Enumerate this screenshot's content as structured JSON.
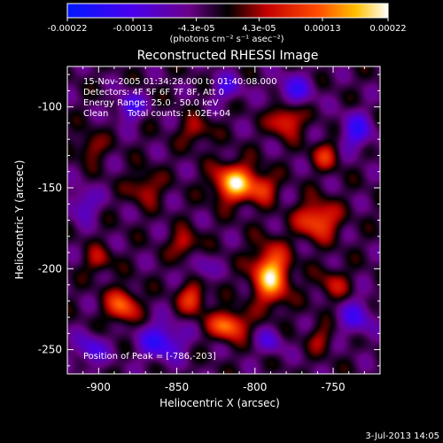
{
  "colorbar": {
    "tick_labels": [
      "-0.00022",
      "-0.00013",
      "-4.3e-05",
      "4.3e-05",
      "0.00013",
      "0.00022"
    ],
    "tick_values": [
      -0.00022,
      -0.00013,
      -4.3e-05,
      4.3e-05,
      0.00013,
      0.00022
    ],
    "range": [
      -0.00022,
      0.00022
    ],
    "units_label": "(photons cm⁻² s⁻¹ asec⁻²)",
    "colors": [
      "#0018ff",
      "#4a00ee",
      "#6a0088",
      "#000000",
      "#c20000",
      "#ff4b00",
      "#ffc000",
      "#ffffff"
    ]
  },
  "plot": {
    "title": "Reconstructed RHESSI Image",
    "xlabel": "Heliocentric X (arcsec)",
    "ylabel": "Heliocentric Y (arcsec)",
    "x_ticks": [
      "-900",
      "-850",
      "-800",
      "-750"
    ],
    "y_ticks": [
      "-100",
      "-150",
      "-200",
      "-250"
    ],
    "x_range": [
      -920,
      -720
    ],
    "y_range": [
      -265,
      -75
    ],
    "x_tick_values": [
      -900,
      -850,
      -800,
      -750
    ],
    "y_tick_values": [
      -100,
      -150,
      -200,
      -250
    ]
  },
  "annotations": {
    "time_range": "15-Nov-2005 01:34:28.000 to 01:40:08.000",
    "detectors": "Detectors: 4F 5F 6F 7F 8F, Att 0",
    "energy_range": "Energy Range: 25.0 - 50.0 keV",
    "algorithm": "Clean",
    "total_counts": "Total counts: 1.02E+04",
    "peak_position": "Position of Peak = [-786,-203]"
  },
  "footer": {
    "timestamp": "3-Jul-2013 14:05"
  },
  "image_blobs": [
    {
      "x": -813,
      "y": -147,
      "sx": 9,
      "sy": 8,
      "a": 1.0
    },
    {
      "x": -790,
      "y": -204,
      "sx": 8,
      "sy": 12,
      "a": 1.0
    },
    {
      "x": -840,
      "y": -218,
      "sx": 6,
      "sy": 7,
      "a": 0.55
    },
    {
      "x": -885,
      "y": -223,
      "sx": 7,
      "sy": 7,
      "a": 0.7
    },
    {
      "x": -817,
      "y": -235,
      "sx": 8,
      "sy": 6,
      "a": 0.8
    },
    {
      "x": -845,
      "y": -185,
      "sx": 6,
      "sy": 6,
      "a": 0.45
    },
    {
      "x": -760,
      "y": -170,
      "sx": 9,
      "sy": 8,
      "a": 0.7
    },
    {
      "x": -750,
      "y": -210,
      "sx": 7,
      "sy": 7,
      "a": 0.35
    },
    {
      "x": -780,
      "y": -108,
      "sx": 7,
      "sy": 7,
      "a": 0.6
    },
    {
      "x": -838,
      "y": -115,
      "sx": 7,
      "sy": 6,
      "a": 0.35
    },
    {
      "x": -795,
      "y": -150,
      "sx": 6,
      "sy": 6,
      "a": 0.5
    },
    {
      "x": -755,
      "y": -130,
      "sx": 6,
      "sy": 6,
      "a": 0.45
    },
    {
      "x": -870,
      "y": -150,
      "sx": 7,
      "sy": 7,
      "a": 0.4
    },
    {
      "x": -905,
      "y": -125,
      "sx": 6,
      "sy": 6,
      "a": 0.35
    },
    {
      "x": -900,
      "y": -195,
      "sx": 6,
      "sy": 6,
      "a": 0.35
    },
    {
      "x": -758,
      "y": -243,
      "sx": 6,
      "sy": 6,
      "a": 0.3
    },
    {
      "x": -880,
      "y": -100,
      "sx": 6,
      "sy": 6,
      "a": -0.55
    },
    {
      "x": -860,
      "y": -245,
      "sx": 10,
      "sy": 8,
      "a": -0.6
    },
    {
      "x": -775,
      "y": -90,
      "sx": 8,
      "sy": 7,
      "a": -0.5
    },
    {
      "x": -735,
      "y": -115,
      "sx": 7,
      "sy": 8,
      "a": -0.55
    },
    {
      "x": -835,
      "y": -200,
      "sx": 6,
      "sy": 6,
      "a": -0.3
    },
    {
      "x": -735,
      "y": -230,
      "sx": 8,
      "sy": 8,
      "a": -0.45
    },
    {
      "x": -910,
      "y": -160,
      "sx": 7,
      "sy": 7,
      "a": -0.4
    },
    {
      "x": -905,
      "y": -250,
      "sx": 7,
      "sy": 7,
      "a": -0.45
    },
    {
      "x": -818,
      "y": -88,
      "sx": 7,
      "sy": 6,
      "a": -0.4
    },
    {
      "x": -790,
      "y": -245,
      "sx": 6,
      "sy": 6,
      "a": -0.35
    }
  ]
}
